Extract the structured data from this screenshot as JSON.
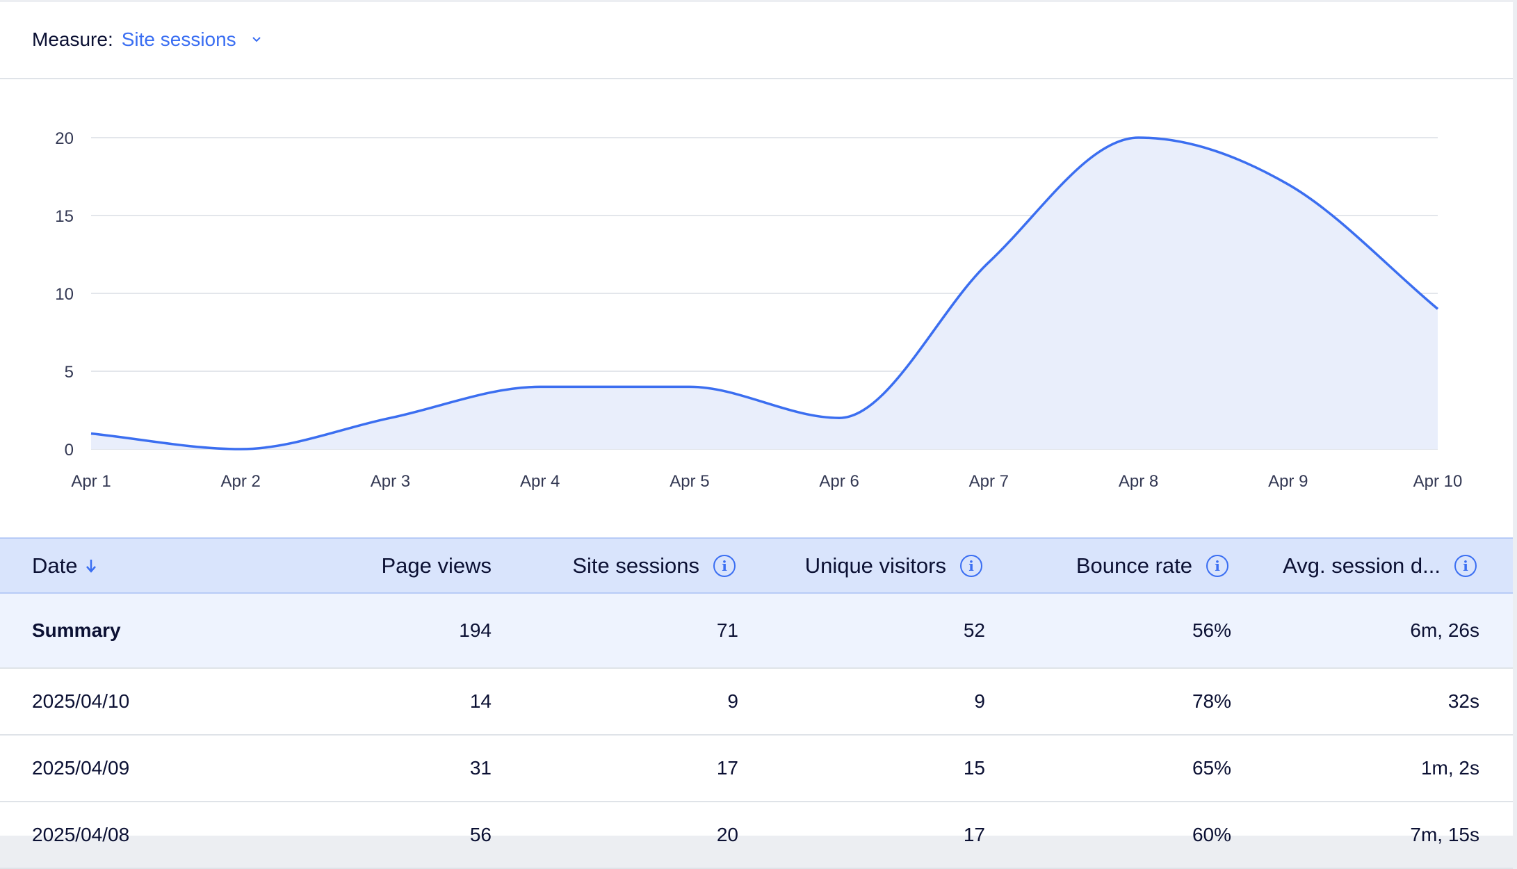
{
  "measure": {
    "label": "Measure:",
    "value": "Site sessions"
  },
  "chart_data": {
    "type": "area",
    "x": [
      "Apr 1",
      "Apr 2",
      "Apr 3",
      "Apr 4",
      "Apr 5",
      "Apr 6",
      "Apr 7",
      "Apr 8",
      "Apr 9",
      "Apr 10"
    ],
    "series": [
      {
        "name": "Site sessions",
        "values": [
          1,
          0,
          2,
          4,
          4,
          2,
          12,
          20,
          17,
          9
        ]
      }
    ],
    "yticks": [
      0,
      5,
      10,
      15,
      20
    ],
    "ylim": [
      0,
      20
    ],
    "grid": true,
    "color": "#3b6ef0",
    "fill": "#e9eefb"
  },
  "table": {
    "headers": [
      "Date",
      "Page views",
      "Site sessions",
      "Unique visitors",
      "Bounce rate",
      "Avg. session d..."
    ],
    "summary": [
      "Summary",
      "194",
      "71",
      "52",
      "56%",
      "6m, 26s"
    ],
    "rows": [
      [
        "2025/04/10",
        "14",
        "9",
        "9",
        "78%",
        "32s"
      ],
      [
        "2025/04/09",
        "31",
        "17",
        "15",
        "65%",
        "1m, 2s"
      ],
      [
        "2025/04/08",
        "56",
        "20",
        "17",
        "60%",
        "7m, 15s"
      ]
    ]
  }
}
